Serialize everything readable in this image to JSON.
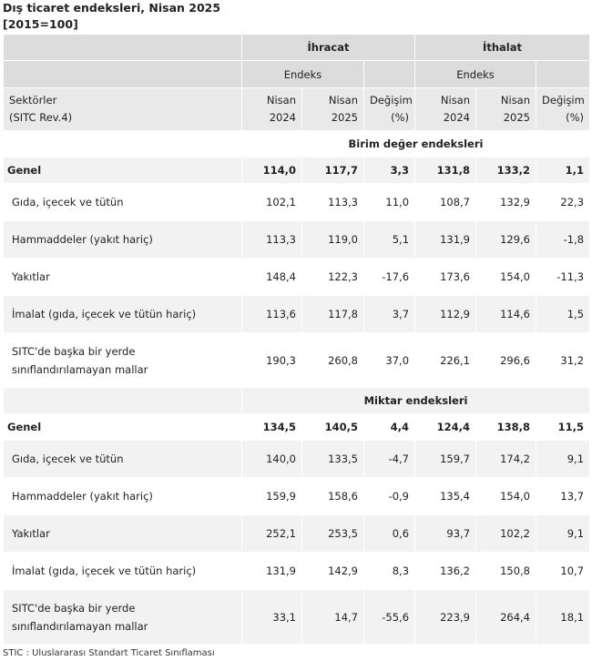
{
  "title": "Dış ticaret endeksleri, Nisan 2025",
  "subtitle": "[2015=100]",
  "header": {
    "export": "İhracat",
    "import": "İthalat",
    "index": "Endeks",
    "sector": "Sektörler",
    "sitc": "(SITC Rev.4)",
    "nisan": "Nisan",
    "y2024": "2024",
    "y2025": "2025",
    "change": "Değişim",
    "pct": "(%)"
  },
  "sections": [
    {
      "title": "Birim değer endeksleri",
      "rows": [
        {
          "label": "Genel",
          "values": [
            "114,0",
            "117,7",
            "3,3",
            "131,8",
            "133,2",
            "1,1"
          ]
        },
        {
          "label": "Gıda, içecek ve tütün",
          "values": [
            "102,1",
            "113,3",
            "11,0",
            "108,7",
            "132,9",
            "22,3"
          ]
        },
        {
          "label": "Hammaddeler (yakıt hariç)",
          "values": [
            "113,3",
            "119,0",
            "5,1",
            "131,9",
            "129,6",
            "-1,8"
          ]
        },
        {
          "label": "Yakıtlar",
          "values": [
            "148,4",
            "122,3",
            "-17,6",
            "173,6",
            "154,0",
            "-11,3"
          ]
        },
        {
          "label": "İmalat (gıda, içecek ve tütün hariç)",
          "values": [
            "113,6",
            "117,8",
            "3,7",
            "112,9",
            "114,6",
            "1,5"
          ]
        },
        {
          "label": "SITC'de başka bir yerde sınıflandırılamayan mallar",
          "values": [
            "190,3",
            "260,8",
            "37,0",
            "226,1",
            "296,6",
            "31,2"
          ]
        }
      ]
    },
    {
      "title": "Miktar endeksleri",
      "rows": [
        {
          "label": "Genel",
          "values": [
            "134,5",
            "140,5",
            "4,4",
            "124,4",
            "138,8",
            "11,5"
          ]
        },
        {
          "label": "Gıda, içecek ve tütün",
          "values": [
            "140,0",
            "133,5",
            "-4,7",
            "159,7",
            "174,2",
            "9,1"
          ]
        },
        {
          "label": "Hammaddeler (yakıt hariç)",
          "values": [
            "159,9",
            "158,6",
            "-0,9",
            "135,4",
            "154,0",
            "13,7"
          ]
        },
        {
          "label": "Yakıtlar",
          "values": [
            "252,1",
            "253,5",
            "0,6",
            "93,7",
            "102,2",
            "9,1"
          ]
        },
        {
          "label": "İmalat (gıda, içecek ve tütün hariç)",
          "values": [
            "131,9",
            "142,9",
            "8,3",
            "136,2",
            "150,8",
            "10,7"
          ]
        },
        {
          "label": "SITC'de başka bir yerde sınıflandırılamayan mallar",
          "values": [
            "33,1",
            "14,7",
            "-55,6",
            "223,9",
            "264,4",
            "18,1"
          ]
        }
      ]
    }
  ],
  "footnote": "STIC : Uluslararası Standart Ticaret Sınıflaması"
}
